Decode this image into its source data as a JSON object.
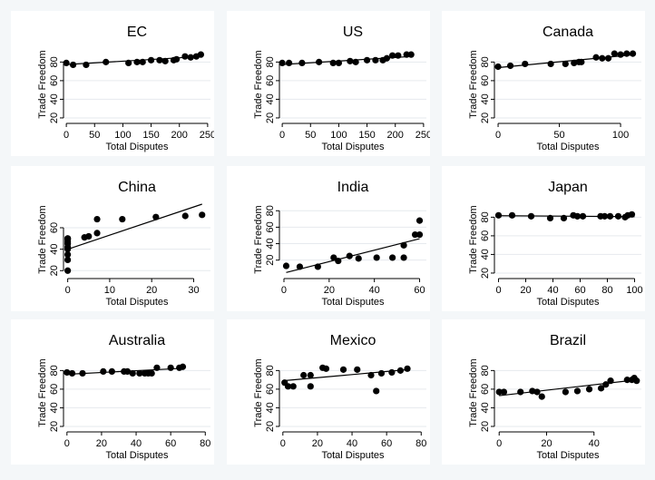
{
  "figure": {
    "y_axis_title": "Trade Freedom",
    "x_axis_title": "Total Disputes",
    "background_color": "#f4f7f9",
    "panel_color": "#ffffff",
    "grid_color": "#e6eaee",
    "marker_color": "#000000",
    "fit_line_color": "#000000"
  },
  "chart_data": [
    {
      "type": "scatter",
      "title": "EC",
      "xlabel": "Total Disputes",
      "ylabel": "Trade Freedom",
      "xlim": [
        -5,
        255
      ],
      "ylim": [
        18,
        94
      ],
      "x_ticks": [
        0,
        50,
        100,
        150,
        200,
        250
      ],
      "y_ticks": [
        20,
        40,
        60,
        80
      ],
      "grid": true,
      "points": [
        [
          0,
          79
        ],
        [
          12,
          77
        ],
        [
          35,
          77
        ],
        [
          70,
          80
        ],
        [
          110,
          79
        ],
        [
          125,
          80
        ],
        [
          135,
          80
        ],
        [
          150,
          82
        ],
        [
          165,
          82
        ],
        [
          175,
          81
        ],
        [
          190,
          82
        ],
        [
          195,
          83
        ],
        [
          210,
          86
        ],
        [
          220,
          85
        ],
        [
          230,
          86
        ],
        [
          238,
          88
        ]
      ],
      "fit": [
        [
          0,
          77.3
        ],
        [
          240,
          86
        ]
      ]
    },
    {
      "type": "scatter",
      "title": "US",
      "xlabel": "Total Disputes",
      "ylabel": "Trade Freedom",
      "xlim": [
        -5,
        255
      ],
      "ylim": [
        18,
        94
      ],
      "x_ticks": [
        0,
        50,
        100,
        150,
        200,
        250
      ],
      "y_ticks": [
        20,
        40,
        60,
        80
      ],
      "grid": true,
      "points": [
        [
          0,
          79
        ],
        [
          12,
          79
        ],
        [
          35,
          79
        ],
        [
          65,
          80
        ],
        [
          90,
          79
        ],
        [
          100,
          79
        ],
        [
          120,
          81
        ],
        [
          130,
          80
        ],
        [
          150,
          82
        ],
        [
          165,
          82
        ],
        [
          178,
          82
        ],
        [
          185,
          84
        ],
        [
          195,
          87
        ],
        [
          205,
          87
        ],
        [
          220,
          88
        ],
        [
          228,
          88
        ]
      ],
      "fit": [
        [
          0,
          77.3
        ],
        [
          230,
          86
        ]
      ]
    },
    {
      "type": "scatter",
      "title": "Canada",
      "xlabel": "Total Disputes",
      "ylabel": "Trade Freedom",
      "xlim": [
        -3,
        117
      ],
      "ylim": [
        18,
        94
      ],
      "x_ticks": [
        0,
        50,
        100
      ],
      "y_ticks": [
        20,
        40,
        60,
        80
      ],
      "grid": true,
      "points": [
        [
          0,
          75
        ],
        [
          10,
          76
        ],
        [
          22,
          78
        ],
        [
          43,
          78
        ],
        [
          55,
          78
        ],
        [
          62,
          79
        ],
        [
          66,
          80
        ],
        [
          68,
          80
        ],
        [
          80,
          85
        ],
        [
          85,
          84
        ],
        [
          90,
          84
        ],
        [
          95,
          89
        ],
        [
          100,
          88
        ],
        [
          105,
          89
        ],
        [
          110,
          89
        ]
      ],
      "fit": [
        [
          0,
          74
        ],
        [
          112,
          88
        ]
      ]
    },
    {
      "type": "scatter",
      "title": "China",
      "xlabel": "Total Disputes",
      "ylabel": "Trade Freedom",
      "xlim": [
        -1,
        34
      ],
      "ylim": [
        16,
        82
      ],
      "x_ticks": [
        0,
        10,
        20,
        30
      ],
      "y_ticks": [
        20,
        40,
        60
      ],
      "grid": true,
      "points": [
        [
          0,
          20
        ],
        [
          0,
          30
        ],
        [
          0,
          35
        ],
        [
          0,
          40
        ],
        [
          0,
          42
        ],
        [
          0,
          45
        ],
        [
          0,
          47
        ],
        [
          0,
          49
        ],
        [
          0,
          50
        ],
        [
          0,
          50
        ],
        [
          4,
          51
        ],
        [
          5,
          52
        ],
        [
          7,
          55
        ],
        [
          7,
          68
        ],
        [
          13,
          68
        ],
        [
          21,
          70
        ],
        [
          28,
          71
        ],
        [
          32,
          72
        ]
      ],
      "fit": [
        [
          0,
          40
        ],
        [
          32,
          82
        ]
      ]
    },
    {
      "type": "scatter",
      "title": "India",
      "xlabel": "Total Disputes",
      "ylabel": "Trade Freedom",
      "xlim": [
        -2,
        63
      ],
      "ylim": [
        2,
        88
      ],
      "x_ticks": [
        0,
        20,
        40,
        60
      ],
      "y_ticks": [
        20,
        40,
        60,
        80
      ],
      "grid": true,
      "points": [
        [
          1,
          13
        ],
        [
          7,
          12
        ],
        [
          15,
          12
        ],
        [
          22,
          23
        ],
        [
          24,
          19
        ],
        [
          29,
          25
        ],
        [
          33,
          22
        ],
        [
          41,
          23
        ],
        [
          48,
          23
        ],
        [
          53,
          23
        ],
        [
          53,
          38
        ],
        [
          58,
          51
        ],
        [
          60,
          51
        ],
        [
          60,
          68
        ]
      ],
      "fit": [
        [
          1,
          5
        ],
        [
          60,
          46
        ]
      ]
    },
    {
      "type": "scatter",
      "title": "Japan",
      "xlabel": "Total Disputes",
      "ylabel": "Trade Freedom",
      "xlim": [
        -3,
        105
      ],
      "ylim": [
        18,
        94
      ],
      "x_ticks": [
        0,
        20,
        40,
        60,
        80,
        100
      ],
      "y_ticks": [
        20,
        40,
        60,
        80
      ],
      "grid": true,
      "points": [
        [
          0,
          82
        ],
        [
          10,
          82
        ],
        [
          24,
          81
        ],
        [
          38,
          79
        ],
        [
          48,
          79
        ],
        [
          55,
          82
        ],
        [
          58,
          81
        ],
        [
          62,
          81
        ],
        [
          75,
          81
        ],
        [
          78,
          81
        ],
        [
          82,
          81
        ],
        [
          88,
          81
        ],
        [
          93,
          80
        ],
        [
          95,
          82
        ],
        [
          98,
          83
        ]
      ],
      "fit": [
        [
          0,
          81.6
        ],
        [
          100,
          80.6
        ]
      ]
    },
    {
      "type": "scatter",
      "title": "Australia",
      "xlabel": "Total Disputes",
      "ylabel": "Trade Freedom",
      "xlim": [
        -2,
        83
      ],
      "ylim": [
        18,
        94
      ],
      "x_ticks": [
        0,
        20,
        40,
        60,
        80
      ],
      "y_ticks": [
        20,
        40,
        60,
        80
      ],
      "grid": true,
      "points": [
        [
          0,
          78
        ],
        [
          3,
          77
        ],
        [
          9,
          77
        ],
        [
          21,
          79
        ],
        [
          26,
          79
        ],
        [
          33,
          79
        ],
        [
          35,
          79
        ],
        [
          38,
          77
        ],
        [
          42,
          77
        ],
        [
          45,
          77
        ],
        [
          47,
          77
        ],
        [
          49,
          77
        ],
        [
          52,
          83
        ],
        [
          60,
          83
        ],
        [
          65,
          83
        ],
        [
          67,
          84
        ]
      ],
      "fit": [
        [
          0,
          76
        ],
        [
          68,
          82.5
        ]
      ]
    },
    {
      "type": "scatter",
      "title": "Mexico",
      "xlabel": "Total Disputes",
      "ylabel": "Trade Freedom",
      "xlim": [
        -2,
        83
      ],
      "ylim": [
        18,
        94
      ],
      "x_ticks": [
        0,
        20,
        40,
        60,
        80
      ],
      "y_ticks": [
        20,
        40,
        60,
        80
      ],
      "grid": true,
      "points": [
        [
          1,
          67
        ],
        [
          3,
          63
        ],
        [
          6,
          63
        ],
        [
          12,
          75
        ],
        [
          16,
          63
        ],
        [
          16,
          75
        ],
        [
          23,
          83
        ],
        [
          25,
          82
        ],
        [
          35,
          81
        ],
        [
          43,
          81
        ],
        [
          51,
          75
        ],
        [
          54,
          58
        ],
        [
          57,
          77
        ],
        [
          63,
          78
        ],
        [
          68,
          80
        ],
        [
          72,
          82
        ]
      ],
      "fit": [
        [
          0,
          69
        ],
        [
          72,
          81
        ]
      ]
    },
    {
      "type": "scatter",
      "title": "Brazil",
      "xlabel": "Total Disputes",
      "ylabel": "Trade Freedom",
      "xlim": [
        -2,
        60
      ],
      "ylim": [
        18,
        94
      ],
      "x_ticks": [
        0,
        20,
        40
      ],
      "y_ticks": [
        20,
        40,
        60,
        80
      ],
      "grid": true,
      "points": [
        [
          0,
          57
        ],
        [
          2,
          57
        ],
        [
          9,
          57
        ],
        [
          14,
          58
        ],
        [
          16,
          57
        ],
        [
          18,
          52
        ],
        [
          28,
          57
        ],
        [
          33,
          58
        ],
        [
          38,
          60
        ],
        [
          43,
          61
        ],
        [
          45,
          65
        ],
        [
          47,
          69
        ],
        [
          54,
          70
        ],
        [
          56,
          70
        ],
        [
          57,
          72
        ],
        [
          58,
          69
        ]
      ],
      "fit": [
        [
          0,
          53
        ],
        [
          58,
          70
        ]
      ]
    }
  ]
}
